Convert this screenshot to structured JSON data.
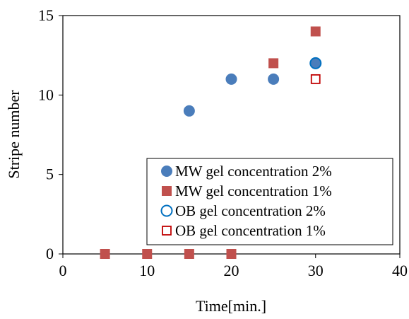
{
  "chart_data": {
    "type": "scatter",
    "title": "",
    "xlabel": "Time[min.]",
    "ylabel": "Stripe number",
    "xlim": [
      0,
      40
    ],
    "ylim": [
      0,
      15
    ],
    "xticks": [
      0,
      10,
      20,
      30,
      40
    ],
    "yticks": [
      0,
      5,
      10,
      15
    ],
    "grid": false,
    "legend_position": "bottom-right",
    "series": [
      {
        "name": "MW gel concentration 2%",
        "marker": "filled-circle",
        "color": "#4a7dbb",
        "x": [
          15,
          20,
          25,
          30
        ],
        "y": [
          9,
          11,
          11,
          12
        ]
      },
      {
        "name": "MW gel concentration 1%",
        "marker": "filled-square",
        "color": "#c0504d",
        "x": [
          5,
          10,
          15,
          20,
          25,
          30
        ],
        "y": [
          0,
          0,
          0,
          0,
          12,
          14
        ]
      },
      {
        "name": "OB gel concentration 2%",
        "marker": "open-circle",
        "color": "#0070c0",
        "x": [
          30
        ],
        "y": [
          12
        ]
      },
      {
        "name": "OB gel concentration 1%",
        "marker": "open-square",
        "color": "#c00000",
        "x": [
          30
        ],
        "y": [
          11
        ]
      }
    ]
  }
}
